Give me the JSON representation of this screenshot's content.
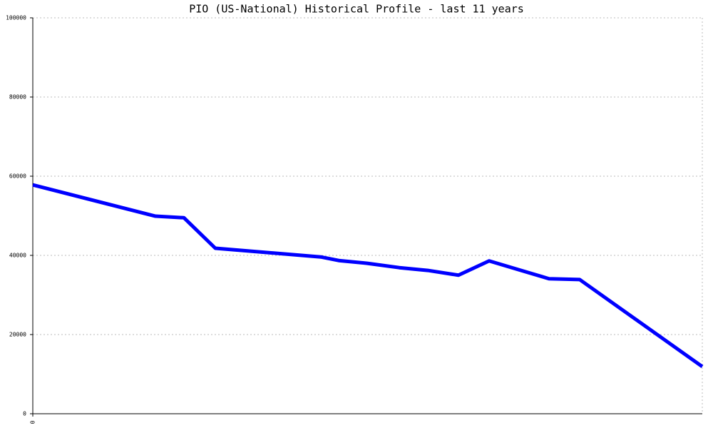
{
  "chart_data": {
    "type": "line",
    "title": "PIO (US-National) Historical Profile - last 11 years",
    "series": [
      {
        "color": "#0000ff",
        "x": [
          0,
          172,
          212,
          256,
          404,
          429,
          469,
          514,
          554,
          597,
          640,
          724,
          767,
          939
        ],
        "values": [
          57800,
          49900,
          49500,
          41800,
          39600,
          38700,
          38000,
          36900,
          36200,
          35000,
          38600,
          34100,
          33900,
          11900
        ]
      }
    ],
    "xlim": [
      0,
      939
    ],
    "xticks": [
      0
    ],
    "ylim": [
      0,
      100000
    ],
    "yticks": [
      0,
      20000,
      40000,
      60000,
      80000,
      100000
    ],
    "grid": true
  }
}
